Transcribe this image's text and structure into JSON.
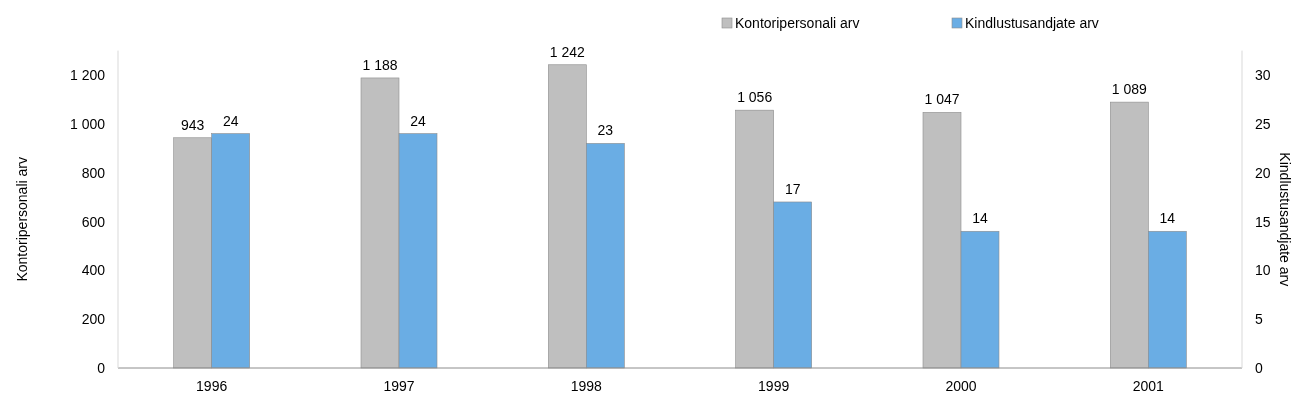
{
  "chart_data": {
    "type": "bar",
    "categories": [
      "1996",
      "1997",
      "1998",
      "1999",
      "2000",
      "2001"
    ],
    "series": [
      {
        "name": "Kontoripersonali arv",
        "color": "#bfbfbf",
        "values": [
          943,
          1188,
          1242,
          1056,
          1047,
          1089
        ],
        "value_labels": [
          "943",
          "1 188",
          "1 242",
          "1 056",
          "1 047",
          "1 089"
        ]
      },
      {
        "name": "Kindlustusandjate arv",
        "color": "#6aade4",
        "axis": "y2",
        "values": [
          24,
          24,
          23,
          17,
          14,
          14
        ],
        "value_labels": [
          "24",
          "24",
          "23",
          "17",
          "14",
          "14"
        ]
      }
    ],
    "ylabel": "Kontoripersonali arv",
    "y2label": "Kindlustusandjate arv",
    "ylim": [
      0,
      1300
    ],
    "yticks": [
      0,
      200,
      400,
      600,
      800,
      {
        "value": 1000,
        "label": "1 000"
      },
      {
        "value": 1200,
        "label": "1 200"
      }
    ],
    "y2lim": [
      0,
      32.5
    ],
    "y2ticks": [
      0,
      5,
      10,
      15,
      20,
      25,
      30
    ],
    "legend": "top right",
    "grid": false
  }
}
